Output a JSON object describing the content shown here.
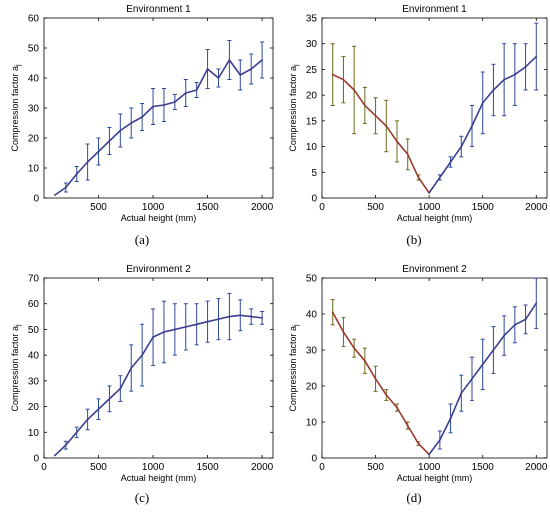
{
  "figure": {
    "captions": [
      "(a)",
      "(b)",
      "(c)",
      "(d)"
    ]
  },
  "chart_data": [
    {
      "type": "line",
      "title": "Environment 1",
      "xlabel": "Actual height (mm)",
      "ylabel": "Compression factor a",
      "ylabel_sub": "j",
      "xlim": [
        0,
        2100
      ],
      "ylim": [
        0,
        60
      ],
      "xticks": [
        500,
        1000,
        1500,
        2000
      ],
      "yticks": [
        0,
        10,
        20,
        30,
        40,
        50,
        60
      ],
      "grid": false,
      "line_color": "#3b3f8f",
      "error_color": "#2c4a9a",
      "series": [
        {
          "x": [
            100,
            200,
            300,
            400,
            500,
            600,
            700,
            800,
            900,
            1000,
            1100,
            1200,
            1300,
            1400,
            1500,
            1600,
            1700,
            1800,
            1900,
            2000
          ],
          "y": [
            1,
            3.5,
            8,
            12,
            15.5,
            19,
            22.5,
            25,
            27,
            30.5,
            31,
            32,
            35,
            36,
            43,
            40,
            46,
            41,
            43,
            46
          ],
          "err": [
            0,
            1.5,
            2.5,
            6,
            4.5,
            4.5,
            5.5,
            5,
            4.5,
            6,
            5.5,
            2.5,
            4.5,
            2.5,
            6.5,
            3,
            6.5,
            5,
            5,
            6
          ]
        }
      ]
    },
    {
      "type": "line",
      "title": "Environment 1",
      "xlabel": "Actual height (mm)",
      "ylabel": "Compression factor a",
      "ylabel_sub": "j",
      "xlim": [
        0,
        2100
      ],
      "ylim": [
        0,
        35
      ],
      "xticks": [
        0,
        500,
        1000,
        1500,
        2000
      ],
      "yticks": [
        0,
        5,
        10,
        15,
        20,
        25,
        30,
        35
      ],
      "grid": false,
      "left_color": "#9b3a2c",
      "right_color": "#3b3f8f",
      "left_error_color": "#6b6a1a",
      "right_error_color": "#2c4a9a",
      "split_x": 1000,
      "series": [
        {
          "x": [
            100,
            200,
            300,
            400,
            500,
            600,
            700,
            800,
            900,
            1000,
            1100,
            1200,
            1300,
            1400,
            1500,
            1600,
            1700,
            1800,
            1900,
            2000
          ],
          "y": [
            24,
            23,
            21,
            18,
            16,
            14,
            11,
            8.5,
            4,
            1,
            4,
            7,
            10,
            14,
            18.5,
            21,
            23,
            24,
            25.5,
            27.5
          ],
          "err": [
            6,
            4.5,
            8.5,
            3.5,
            3.5,
            5,
            4,
            3,
            0.5,
            0,
            0.5,
            1,
            2,
            4,
            6,
            5,
            7,
            6,
            4.5,
            6.5
          ]
        }
      ]
    },
    {
      "type": "line",
      "title": "Environment 2",
      "xlabel": "Actual height (mm)",
      "ylabel": "Compression factor a",
      "ylabel_sub": "j",
      "xlim": [
        0,
        2100
      ],
      "ylim": [
        0,
        70
      ],
      "xticks": [
        0,
        500,
        1000,
        1500,
        2000
      ],
      "yticks": [
        0,
        10,
        20,
        30,
        40,
        50,
        60,
        70
      ],
      "grid": false,
      "line_color": "#3b3f8f",
      "error_color": "#2c4a9a",
      "series": [
        {
          "x": [
            100,
            200,
            300,
            400,
            500,
            600,
            700,
            800,
            900,
            1000,
            1100,
            1200,
            1300,
            1400,
            1500,
            1600,
            1700,
            1800,
            1900,
            2000
          ],
          "y": [
            1,
            5,
            10,
            15,
            19,
            23,
            27,
            35,
            40,
            47,
            49,
            50,
            51,
            52,
            53,
            54,
            55,
            55.5,
            55,
            54.5
          ],
          "err": [
            0,
            1.5,
            2,
            4,
            4,
            5,
            5,
            9,
            12,
            11,
            12,
            10,
            9,
            8,
            8,
            8,
            9,
            6,
            3,
            2.5
          ]
        }
      ]
    },
    {
      "type": "line",
      "title": "Environment 2",
      "xlabel": "Actual height (mm)",
      "ylabel": "Compression factor a",
      "ylabel_sub": "j",
      "xlim": [
        0,
        2100
      ],
      "ylim": [
        0,
        50
      ],
      "xticks": [
        0,
        500,
        1000,
        1500,
        2000
      ],
      "yticks": [
        0,
        10,
        20,
        30,
        40,
        50
      ],
      "grid": false,
      "left_color": "#9b3a2c",
      "right_color": "#3b3f8f",
      "left_error_color": "#6b6a1a",
      "right_error_color": "#2c4a9a",
      "split_x": 1000,
      "series": [
        {
          "x": [
            100,
            200,
            300,
            400,
            500,
            600,
            700,
            800,
            900,
            1000,
            1100,
            1200,
            1300,
            1400,
            1500,
            1600,
            1700,
            1800,
            1900,
            2000
          ],
          "y": [
            40.5,
            35,
            30.5,
            27,
            22,
            17.5,
            14,
            9,
            4,
            1,
            5,
            11,
            18,
            22,
            26,
            30,
            34,
            37,
            38.5,
            43
          ],
          "err": [
            3.5,
            4,
            2.5,
            3.5,
            3.5,
            1.5,
            1,
            1,
            0.5,
            0,
            2.5,
            4,
            5,
            6,
            7,
            6.5,
            5.5,
            5,
            4,
            7
          ]
        }
      ]
    }
  ]
}
